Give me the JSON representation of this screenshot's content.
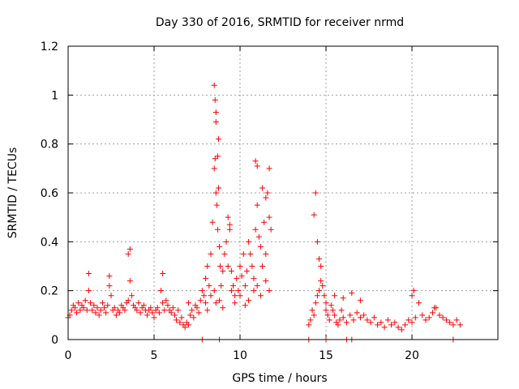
{
  "chart_data": {
    "type": "scatter",
    "title": "Day 330 of 2016, SRMTID for receiver nrmd",
    "xlabel": "GPS time / hours",
    "ylabel": "SRMTID / TECUs",
    "xlim": [
      0,
      25
    ],
    "ylim": [
      0,
      1.2
    ],
    "xticks": [
      0,
      5,
      10,
      15,
      20
    ],
    "yticks": [
      0,
      0.2,
      0.4,
      0.6,
      0.8,
      1,
      1.2
    ],
    "xtick_labels": [
      "0",
      "5",
      "10",
      "15",
      "20"
    ],
    "ytick_labels": [
      "0",
      "0.2",
      "0.4",
      "0.6",
      "0.8",
      "1",
      "1.2"
    ],
    "grid": true,
    "legend": "none",
    "marker": "plus",
    "color": "#ff0000",
    "series": [
      {
        "name": "SRMTID",
        "x": [
          0.0,
          0.1,
          0.2,
          0.3,
          0.4,
          0.5,
          0.6,
          0.7,
          0.8,
          0.9,
          1.0,
          1.1,
          1.2,
          1.3,
          1.4,
          1.5,
          1.6,
          1.7,
          1.8,
          1.9,
          2.0,
          2.1,
          2.2,
          2.3,
          2.4,
          2.5,
          2.6,
          2.7,
          2.8,
          2.9,
          3.0,
          3.1,
          3.2,
          3.3,
          3.4,
          3.5,
          3.6,
          3.7,
          3.8,
          3.9,
          4.0,
          4.1,
          4.2,
          4.3,
          4.4,
          4.5,
          4.6,
          4.7,
          4.8,
          4.9,
          5.0,
          5.1,
          5.2,
          5.3,
          5.4,
          5.5,
          5.6,
          5.7,
          5.8,
          5.9,
          6.0,
          6.1,
          6.2,
          6.3,
          6.4,
          6.5,
          6.6,
          6.7,
          6.8,
          6.9,
          7.0,
          7.1,
          7.2,
          7.3,
          7.4,
          7.5,
          7.6,
          7.7,
          7.8,
          7.9,
          8.0,
          8.1,
          8.2,
          8.3,
          8.4,
          8.5,
          8.55,
          8.6,
          8.65,
          8.7,
          8.75,
          8.8,
          8.85,
          8.9,
          9.0,
          9.1,
          9.2,
          9.3,
          9.4,
          9.5,
          9.6,
          9.7,
          9.8,
          9.9,
          10.0,
          10.1,
          10.2,
          10.3,
          10.4,
          10.5,
          10.6,
          10.7,
          10.8,
          10.9,
          11.0,
          11.1,
          11.2,
          11.3,
          11.4,
          11.5,
          11.6,
          11.7,
          11.8,
          8.0,
          8.1,
          8.3,
          8.5,
          8.6,
          8.8,
          9.0,
          9.5,
          9.7,
          10.0,
          10.3,
          10.5,
          10.8,
          11.0,
          11.2,
          11.5,
          11.7,
          1.2,
          2.4,
          3.5,
          3.6,
          5.5,
          7.0,
          8.5,
          8.55,
          8.6,
          8.7,
          8.75,
          9.3,
          9.4,
          10.9,
          11.0,
          11.3,
          11.5,
          11.7,
          8.6,
          14.0,
          14.1,
          14.2,
          14.3,
          14.4,
          14.5,
          14.6,
          14.7,
          14.8,
          14.9,
          15.0,
          15.1,
          15.2,
          15.3,
          15.4,
          15.5,
          15.6,
          15.7,
          15.8,
          15.9,
          16.0,
          16.2,
          16.4,
          16.6,
          16.8,
          17.0,
          17.2,
          17.4,
          17.6,
          17.8,
          18.0,
          18.2,
          18.4,
          18.6,
          18.8,
          19.0,
          19.2,
          19.4,
          19.6,
          19.8,
          20.0,
          20.2,
          20.4,
          20.6,
          20.8,
          21.0,
          21.2,
          21.4,
          21.6,
          21.8,
          22.0,
          22.2,
          22.4,
          22.6,
          22.8,
          14.3,
          14.4,
          14.5,
          14.6,
          14.7,
          15.0,
          15.5,
          16.0,
          16.5,
          17.0,
          20.0,
          20.1,
          21.3,
          14.0,
          15.0,
          16.2,
          16.5,
          22.4,
          7.8,
          8.8
        ],
        "y": [
          0.09,
          0.1,
          0.12,
          0.14,
          0.13,
          0.11,
          0.15,
          0.12,
          0.14,
          0.13,
          0.16,
          0.12,
          0.2,
          0.15,
          0.12,
          0.14,
          0.11,
          0.13,
          0.1,
          0.12,
          0.15,
          0.13,
          0.11,
          0.14,
          0.22,
          0.18,
          0.12,
          0.13,
          0.1,
          0.12,
          0.11,
          0.14,
          0.13,
          0.12,
          0.15,
          0.16,
          0.24,
          0.18,
          0.14,
          0.13,
          0.12,
          0.15,
          0.11,
          0.13,
          0.14,
          0.12,
          0.1,
          0.12,
          0.13,
          0.11,
          0.09,
          0.12,
          0.13,
          0.11,
          0.2,
          0.15,
          0.12,
          0.16,
          0.14,
          0.12,
          0.11,
          0.13,
          0.1,
          0.08,
          0.12,
          0.07,
          0.09,
          0.06,
          0.05,
          0.07,
          0.06,
          0.1,
          0.12,
          0.09,
          0.14,
          0.13,
          0.11,
          0.16,
          0.2,
          0.18,
          0.25,
          0.3,
          0.22,
          0.35,
          0.48,
          0.7,
          0.74,
          0.6,
          0.55,
          0.45,
          0.62,
          0.38,
          0.3,
          0.22,
          0.28,
          0.35,
          0.4,
          0.3,
          0.45,
          0.28,
          0.22,
          0.18,
          0.25,
          0.2,
          0.3,
          0.26,
          0.35,
          0.22,
          0.28,
          0.4,
          0.35,
          0.3,
          0.25,
          0.45,
          0.55,
          0.42,
          0.38,
          0.3,
          0.48,
          0.35,
          0.6,
          0.5,
          0.45,
          0.15,
          0.12,
          0.18,
          0.2,
          0.15,
          0.16,
          0.13,
          0.2,
          0.15,
          0.18,
          0.14,
          0.16,
          0.2,
          0.22,
          0.18,
          0.24,
          0.2,
          0.27,
          0.26,
          0.35,
          0.37,
          0.27,
          0.15,
          1.04,
          0.98,
          0.93,
          0.75,
          0.82,
          0.5,
          0.47,
          0.73,
          0.71,
          0.62,
          0.58,
          0.7,
          0.89,
          0.06,
          0.08,
          0.12,
          0.1,
          0.15,
          0.18,
          0.2,
          0.24,
          0.22,
          0.18,
          0.12,
          0.1,
          0.08,
          0.14,
          0.12,
          0.1,
          0.07,
          0.06,
          0.08,
          0.12,
          0.09,
          0.07,
          0.1,
          0.08,
          0.11,
          0.09,
          0.1,
          0.08,
          0.07,
          0.09,
          0.06,
          0.07,
          0.05,
          0.08,
          0.06,
          0.07,
          0.05,
          0.04,
          0.06,
          0.08,
          0.07,
          0.09,
          0.15,
          0.1,
          0.08,
          0.09,
          0.11,
          0.13,
          0.1,
          0.09,
          0.08,
          0.07,
          0.06,
          0.08,
          0.06,
          0.51,
          0.6,
          0.4,
          0.33,
          0.3,
          0.15,
          0.18,
          0.17,
          0.19,
          0.16,
          0.18,
          0.2,
          0.13,
          0.0,
          0.0,
          0.0,
          0.0,
          0.0,
          0.0,
          0.0
        ]
      }
    ]
  }
}
